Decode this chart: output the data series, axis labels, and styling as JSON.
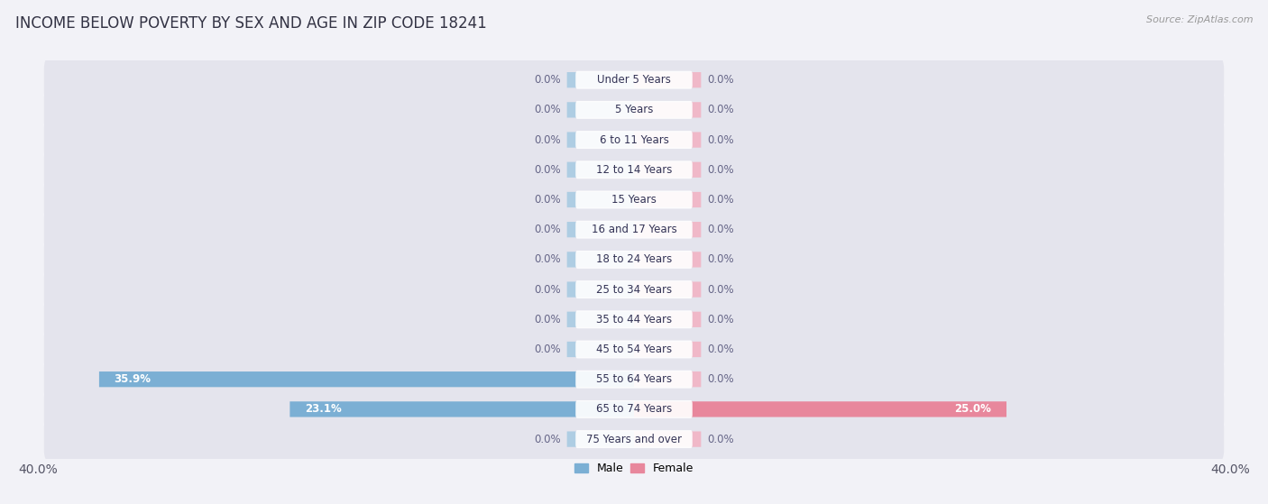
{
  "title": "INCOME BELOW POVERTY BY SEX AND AGE IN ZIP CODE 18241",
  "source": "Source: ZipAtlas.com",
  "categories": [
    "Under 5 Years",
    "5 Years",
    "6 to 11 Years",
    "12 to 14 Years",
    "15 Years",
    "16 and 17 Years",
    "18 to 24 Years",
    "25 to 34 Years",
    "35 to 44 Years",
    "45 to 54 Years",
    "55 to 64 Years",
    "65 to 74 Years",
    "75 Years and over"
  ],
  "male": [
    0.0,
    0.0,
    0.0,
    0.0,
    0.0,
    0.0,
    0.0,
    0.0,
    0.0,
    0.0,
    35.9,
    23.1,
    0.0
  ],
  "female": [
    0.0,
    0.0,
    0.0,
    0.0,
    0.0,
    0.0,
    0.0,
    0.0,
    0.0,
    0.0,
    0.0,
    25.0,
    0.0
  ],
  "male_color": "#7bafd4",
  "female_color": "#e8879c",
  "male_color_light": "#aecde3",
  "female_color_light": "#f0b8c8",
  "male_label": "Male",
  "female_label": "Female",
  "xlim": 40.0,
  "stub_size": 4.5,
  "background_color": "#f2f2f7",
  "row_bg_color": "#e4e4ed",
  "bar_bg_color": "#e4e4ed",
  "title_fontsize": 12,
  "source_fontsize": 8,
  "axis_fontsize": 10,
  "label_fontsize": 8.5,
  "category_fontsize": 8.5
}
